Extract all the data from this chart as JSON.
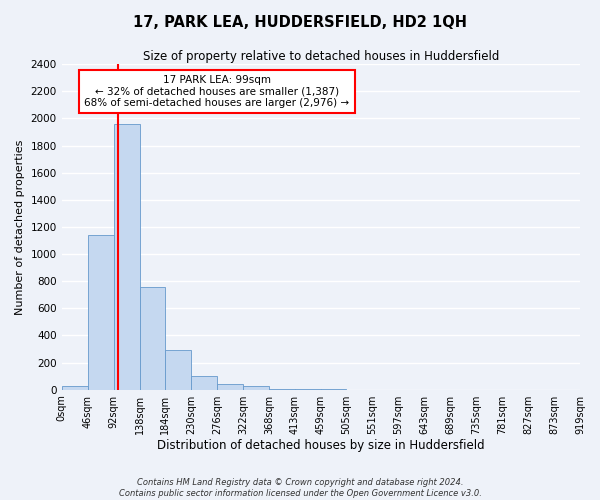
{
  "title": "17, PARK LEA, HUDDERSFIELD, HD2 1QH",
  "subtitle": "Size of property relative to detached houses in Huddersfield",
  "xlabel": "Distribution of detached houses by size in Huddersfield",
  "ylabel": "Number of detached properties",
  "bin_edges": [
    0,
    46,
    92,
    138,
    184,
    230,
    276,
    322,
    368,
    413,
    459,
    505,
    551,
    597,
    643,
    689,
    735,
    781,
    827,
    873,
    919
  ],
  "bar_heights": [
    30,
    1140,
    1960,
    760,
    295,
    100,
    45,
    25,
    5,
    2,
    2,
    1,
    0,
    0,
    0,
    0,
    0,
    0,
    0,
    0
  ],
  "bar_color": "#c5d8f0",
  "bar_edge_color": "#6699cc",
  "property_size": 99,
  "vline_color": "red",
  "annotation_text": "17 PARK LEA: 99sqm\n← 32% of detached houses are smaller (1,387)\n68% of semi-detached houses are larger (2,976) →",
  "annotation_box_color": "white",
  "annotation_box_edge_color": "red",
  "ylim": [
    0,
    2400
  ],
  "yticks": [
    0,
    200,
    400,
    600,
    800,
    1000,
    1200,
    1400,
    1600,
    1800,
    2000,
    2200,
    2400
  ],
  "tick_labels": [
    "0sqm",
    "46sqm",
    "92sqm",
    "138sqm",
    "184sqm",
    "230sqm",
    "276sqm",
    "322sqm",
    "368sqm",
    "413sqm",
    "459sqm",
    "505sqm",
    "551sqm",
    "597sqm",
    "643sqm",
    "689sqm",
    "735sqm",
    "781sqm",
    "827sqm",
    "873sqm",
    "919sqm"
  ],
  "footnote1": "Contains HM Land Registry data © Crown copyright and database right 2024.",
  "footnote2": "Contains public sector information licensed under the Open Government Licence v3.0.",
  "background_color": "#eef2f9",
  "grid_color": "white",
  "title_fontsize": 10.5,
  "subtitle_fontsize": 8.5,
  "xlabel_fontsize": 8.5,
  "ylabel_fontsize": 8,
  "tick_fontsize": 7,
  "annot_fontsize": 7.5
}
